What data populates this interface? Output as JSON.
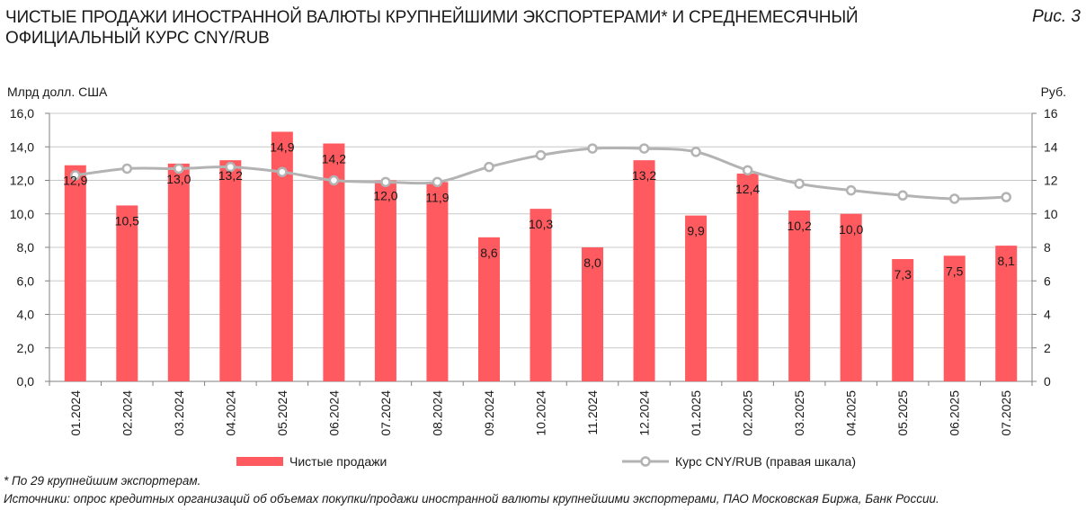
{
  "header": {
    "title_line1": "ЧИСТЫЕ ПРОДАЖИ ИНОСТРАННОЙ ВАЛЮТЫ КРУПНЕЙШИМИ ЭКСПОРТЕРАМИ* И СРЕДНЕМЕСЯЧНЫЙ",
    "title_line2": "ОФИЦИАЛЬНЫЙ КУРС CNY/RUB",
    "figure_label": "Рис. 3"
  },
  "footer": {
    "footnote": "* По 29 крупнейшим экспортерам.",
    "sources": "Источники: опрос кредитных организаций об объемах покупки/продажи иностранной валюты крупнейшими экспортерами, ПАО Московская Биржа, Банк России."
  },
  "colors": {
    "bar": "#ff5a5f",
    "line": "#b3b3b3",
    "grid": "#c8c8c8",
    "axis": "#808080"
  },
  "chart_data": {
    "type": "bar",
    "categories": [
      "01.2024",
      "02.2024",
      "03.2024",
      "04.2024",
      "05.2024",
      "06.2024",
      "07.2024",
      "08.2024",
      "09.2024",
      "10.2024",
      "11.2024",
      "12.2024",
      "01.2025",
      "02.2025",
      "03.2025",
      "04.2025",
      "05.2025",
      "06.2025",
      "07.2025"
    ],
    "ylabel_left": "Млрд долл. США",
    "ylabel_right": "Руб.",
    "ylim_left": [
      0,
      16
    ],
    "ylim_right": [
      0,
      16
    ],
    "yticks_left": [
      "0,0",
      "2,0",
      "4,0",
      "6,0",
      "8,0",
      "10,0",
      "12,0",
      "14,0",
      "16,0"
    ],
    "yticks_right": [
      "0",
      "2",
      "4",
      "6",
      "8",
      "10",
      "12",
      "14",
      "16"
    ],
    "grid": true,
    "legend_position": "bottom",
    "series": [
      {
        "name": "Чистые продажи",
        "type": "bar",
        "axis": "left",
        "values": [
          12.9,
          10.5,
          13.0,
          13.2,
          14.9,
          14.2,
          12.0,
          11.9,
          8.6,
          10.3,
          8.0,
          13.2,
          9.9,
          12.4,
          10.2,
          10.0,
          7.3,
          7.5,
          8.1
        ],
        "labels": [
          "12,9",
          "10,5",
          "13,0",
          "13,2",
          "14,9",
          "14,2",
          "12,0",
          "11,9",
          "8,6",
          "10,3",
          "8,0",
          "13,2",
          "9,9",
          "12,4",
          "10,2",
          "10,0",
          "7,3",
          "7,5",
          "8,1"
        ]
      },
      {
        "name": "Курс CNY/RUB (правая шкала)",
        "type": "line",
        "axis": "right",
        "values": [
          12.3,
          12.7,
          12.7,
          12.8,
          12.5,
          12.0,
          11.9,
          11.9,
          12.8,
          13.5,
          13.9,
          13.9,
          13.7,
          12.6,
          11.8,
          11.4,
          11.1,
          10.9,
          11.0
        ]
      }
    ]
  }
}
